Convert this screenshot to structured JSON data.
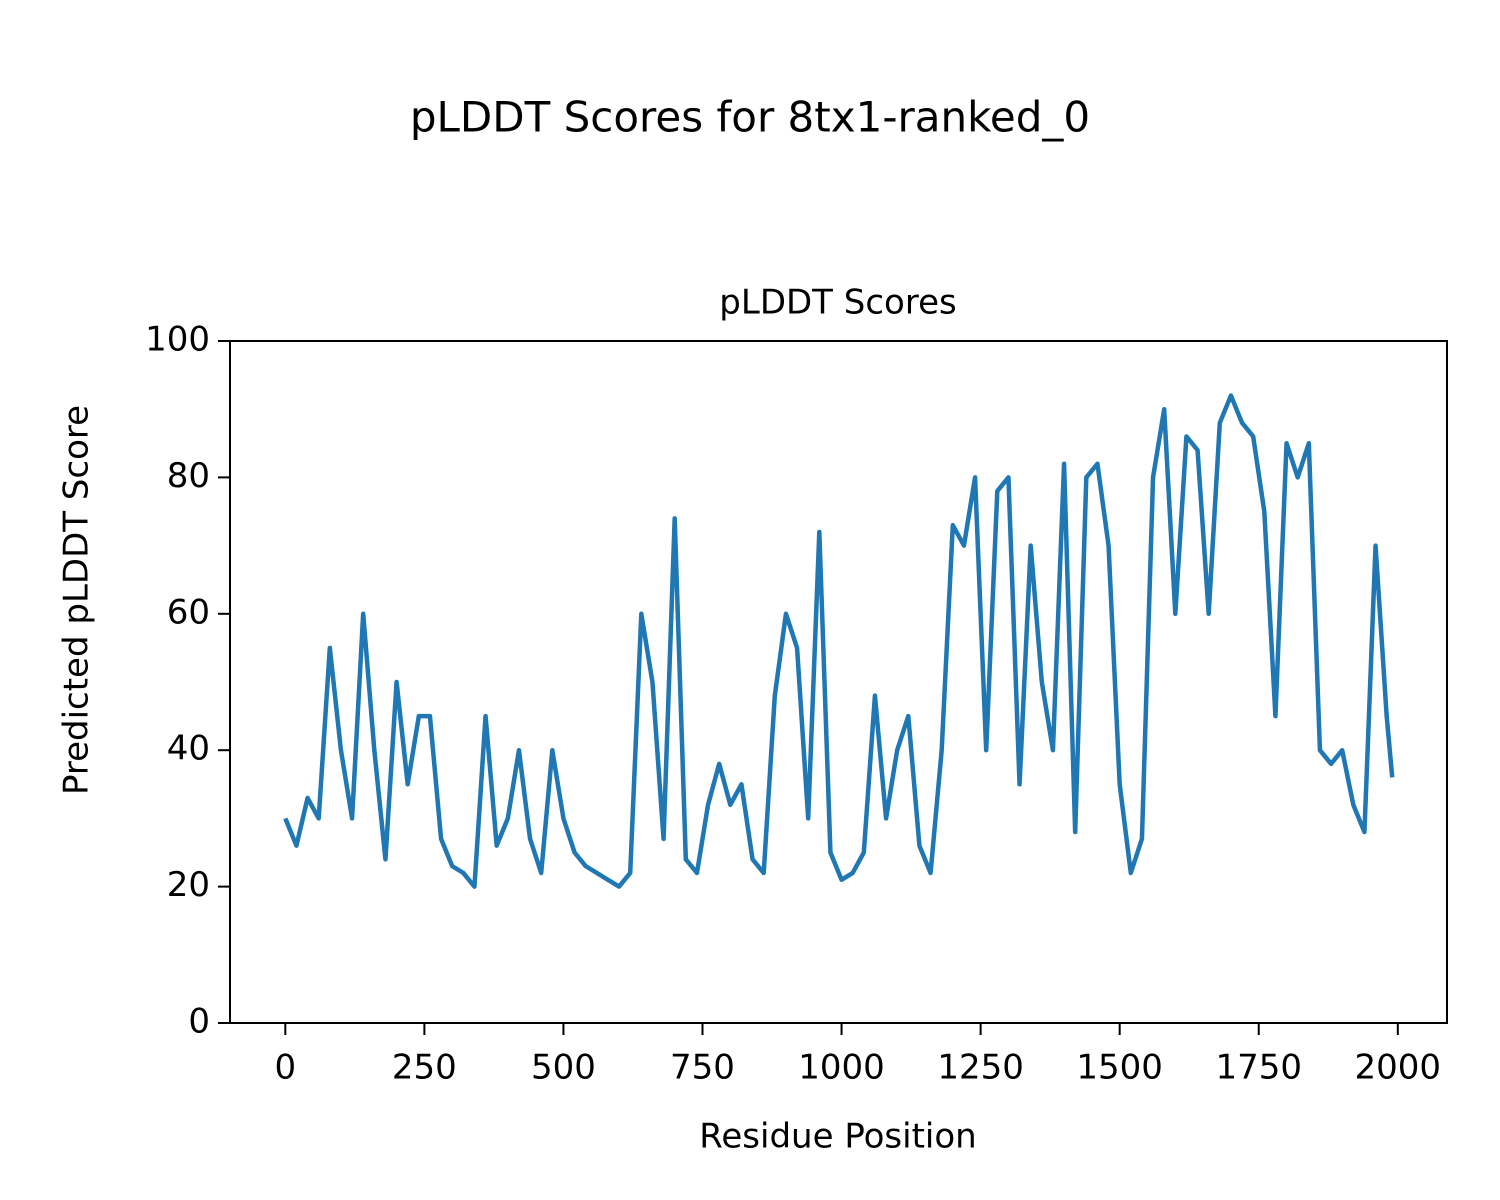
{
  "chart_data": {
    "type": "line",
    "title": "pLDDT Scores for 8tx1-ranked_0",
    "subtitle": "pLDDT Scores",
    "xlabel": "Residue Position",
    "ylabel": "Predicted pLDDT Score",
    "color": "#1f77b4",
    "x": [
      0,
      20,
      40,
      60,
      80,
      100,
      120,
      140,
      160,
      180,
      200,
      220,
      240,
      260,
      280,
      300,
      320,
      340,
      360,
      380,
      400,
      420,
      440,
      460,
      480,
      500,
      520,
      540,
      560,
      580,
      600,
      620,
      640,
      660,
      680,
      700,
      720,
      740,
      760,
      780,
      800,
      820,
      840,
      860,
      880,
      900,
      920,
      940,
      960,
      980,
      1000,
      1020,
      1040,
      1060,
      1080,
      1100,
      1120,
      1140,
      1160,
      1180,
      1200,
      1220,
      1240,
      1260,
      1280,
      1300,
      1320,
      1340,
      1360,
      1380,
      1400,
      1420,
      1440,
      1460,
      1480,
      1500,
      1520,
      1540,
      1560,
      1580,
      1600,
      1620,
      1640,
      1660,
      1680,
      1700,
      1720,
      1740,
      1760,
      1780,
      1800,
      1820,
      1840,
      1860,
      1880,
      1900,
      1920,
      1940,
      1960,
      1980,
      1990
    ],
    "values": [
      30,
      26,
      33,
      30,
      55,
      40,
      30,
      60,
      40,
      24,
      50,
      35,
      45,
      45,
      27,
      23,
      22,
      20,
      45,
      26,
      30,
      40,
      27,
      22,
      40,
      30,
      25,
      23,
      22,
      21,
      20,
      22,
      60,
      50,
      27,
      74,
      24,
      22,
      32,
      38,
      32,
      35,
      24,
      22,
      48,
      60,
      55,
      30,
      72,
      25,
      21,
      22,
      25,
      48,
      30,
      40,
      45,
      26,
      22,
      40,
      73,
      70,
      80,
      40,
      78,
      80,
      35,
      70,
      50,
      40,
      82,
      28,
      80,
      82,
      70,
      35,
      22,
      27,
      80,
      90,
      60,
      86,
      84,
      60,
      88,
      92,
      88,
      86,
      75,
      45,
      85,
      80,
      85,
      40,
      38,
      40,
      32,
      28,
      70,
      45,
      36
    ],
    "xlim": [
      -99.45,
      2088.45
    ],
    "ylim": [
      0,
      100
    ],
    "xticks": [
      0,
      250,
      500,
      750,
      1000,
      1250,
      1500,
      1750,
      2000
    ],
    "yticks": [
      0,
      20,
      40,
      60,
      80,
      100
    ]
  }
}
